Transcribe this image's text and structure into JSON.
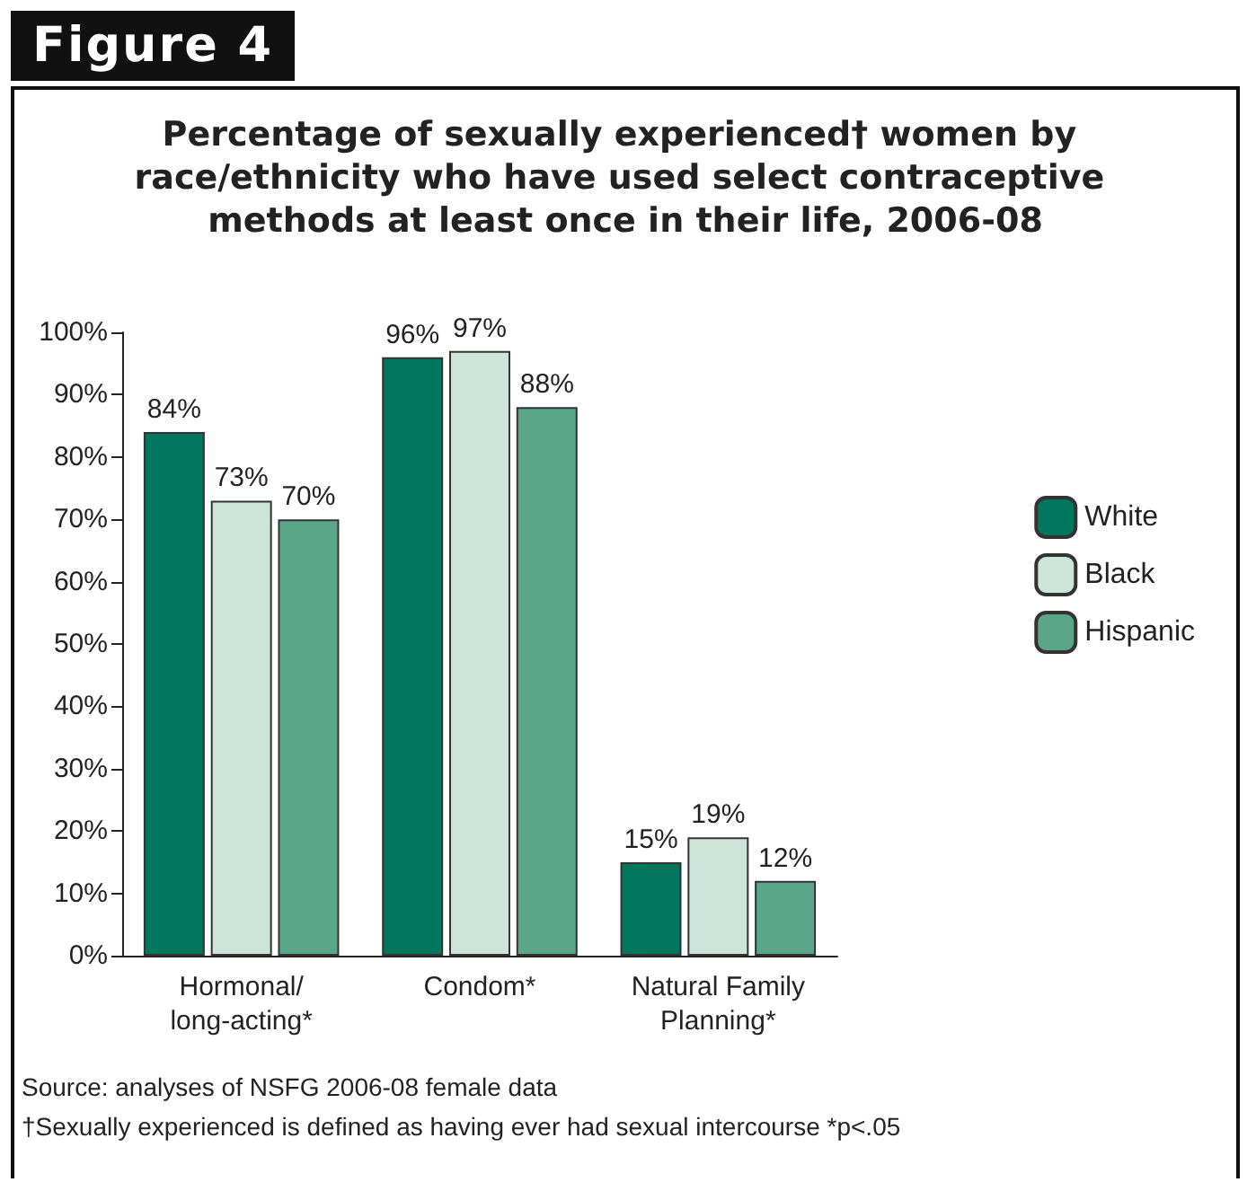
{
  "chart_data": {
    "type": "bar",
    "title": "Percentage of sexually experienced† women by race/ethnicity who have used select contraceptive methods at least once in their life, 2006-08",
    "categories": [
      "Hormonal/\nlong-acting*",
      "Condom*",
      "Natural Family\nPlanning*"
    ],
    "series": [
      {
        "name": "White",
        "color": "#00775e",
        "values": [
          84,
          96,
          15
        ],
        "value_labels": [
          "84%",
          "96%",
          "15%"
        ]
      },
      {
        "name": "Black",
        "color": "#cde4da",
        "values": [
          73,
          97,
          19
        ],
        "value_labels": [
          "73%",
          "97%",
          "19%"
        ]
      },
      {
        "name": "Hispanic",
        "color": "#5ba58b",
        "values": [
          70,
          88,
          12
        ],
        "value_labels": [
          "70%",
          "88%",
          "12%"
        ]
      }
    ],
    "ylim": [
      0,
      100
    ],
    "yticks": [
      {
        "value": 0,
        "label": "0%"
      },
      {
        "value": 10,
        "label": "10%"
      },
      {
        "value": 20,
        "label": "20%"
      },
      {
        "value": 30,
        "label": "30%"
      },
      {
        "value": 40,
        "label": "40%"
      },
      {
        "value": 50,
        "label": "50%"
      },
      {
        "value": 60,
        "label": "60%"
      },
      {
        "value": 70,
        "label": "70%"
      },
      {
        "value": 80,
        "label": "80%"
      },
      {
        "value": 90,
        "label": "90%"
      },
      {
        "value": 100,
        "label": "100%"
      }
    ],
    "grid": false,
    "legend": "right",
    "annotations": [
      "Figure 4",
      "Source: analyses of NSFG 2006-08 female data",
      "†Sexually experienced is defined as having ever had sexual intercourse  *p<.05"
    ]
  }
}
